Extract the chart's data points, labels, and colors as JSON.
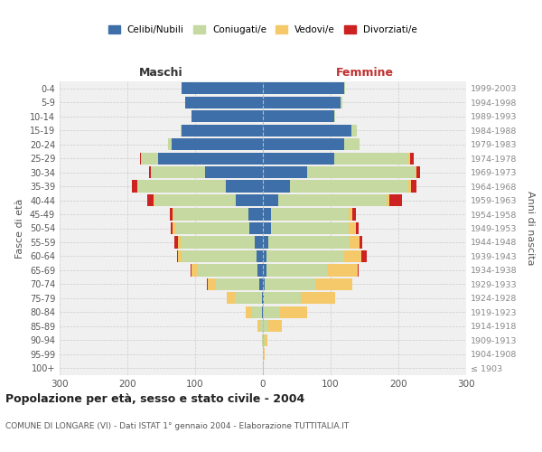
{
  "age_groups": [
    "100+",
    "95-99",
    "90-94",
    "85-89",
    "80-84",
    "75-79",
    "70-74",
    "65-69",
    "60-64",
    "55-59",
    "50-54",
    "45-49",
    "40-44",
    "35-39",
    "30-34",
    "25-29",
    "20-24",
    "15-19",
    "10-14",
    "5-9",
    "0-4"
  ],
  "birth_years": [
    "≤ 1903",
    "1904-1908",
    "1909-1913",
    "1914-1918",
    "1919-1923",
    "1924-1928",
    "1929-1933",
    "1934-1938",
    "1939-1943",
    "1944-1948",
    "1949-1953",
    "1954-1958",
    "1959-1963",
    "1964-1968",
    "1969-1973",
    "1974-1978",
    "1979-1983",
    "1984-1988",
    "1989-1993",
    "1994-1998",
    "1999-2003"
  ],
  "colors": {
    "celibi": "#3f6fa8",
    "coniugati": "#c5d9a0",
    "vedovi": "#f5c96a",
    "divorziati": "#cc2222"
  },
  "maschi": {
    "celibi": [
      0,
      0,
      0,
      0,
      1,
      2,
      5,
      8,
      10,
      12,
      20,
      22,
      40,
      55,
      85,
      155,
      135,
      120,
      105,
      115,
      120
    ],
    "coniugati": [
      0,
      0,
      1,
      4,
      15,
      40,
      65,
      90,
      110,
      110,
      110,
      110,
      120,
      130,
      80,
      25,
      5,
      2,
      1,
      0,
      0
    ],
    "vedovi": [
      0,
      0,
      1,
      4,
      10,
      12,
      12,
      8,
      5,
      4,
      3,
      2,
      1,
      1,
      0,
      0,
      0,
      0,
      0,
      0,
      0
    ],
    "divorziati": [
      0,
      0,
      0,
      0,
      0,
      0,
      1,
      1,
      2,
      5,
      3,
      4,
      10,
      8,
      3,
      2,
      0,
      0,
      0,
      0,
      0
    ]
  },
  "femmine": {
    "celibi": [
      0,
      0,
      0,
      0,
      0,
      1,
      2,
      5,
      5,
      8,
      12,
      12,
      22,
      40,
      65,
      105,
      120,
      130,
      105,
      115,
      120
    ],
    "coniugati": [
      0,
      1,
      2,
      8,
      25,
      55,
      75,
      90,
      115,
      120,
      115,
      115,
      160,
      175,
      160,
      110,
      22,
      8,
      2,
      2,
      1
    ],
    "vedovi": [
      1,
      2,
      5,
      20,
      40,
      50,
      55,
      45,
      25,
      15,
      10,
      5,
      5,
      3,
      2,
      2,
      0,
      0,
      0,
      0,
      0
    ],
    "divorziati": [
      0,
      0,
      0,
      0,
      0,
      0,
      0,
      1,
      8,
      4,
      4,
      5,
      18,
      8,
      5,
      5,
      1,
      0,
      0,
      0,
      0
    ]
  },
  "title": "Popolazione per età, sesso e stato civile - 2004",
  "subtitle": "COMUNE DI LONGARE (VI) - Dati ISTAT 1° gennaio 2004 - Elaborazione TUTTITALIA.IT",
  "ylabel_left": "Fasce di età",
  "ylabel_right": "Anni di nascita",
  "xlabel_left": "Maschi",
  "xlabel_right": "Femmine",
  "xlim": 300,
  "legend_labels": [
    "Celibi/Nubili",
    "Coniugati/e",
    "Vedovi/e",
    "Divorziati/e"
  ],
  "background_color": "#ffffff",
  "plot_bg": "#f0f0f0",
  "grid_color": "#cccccc"
}
